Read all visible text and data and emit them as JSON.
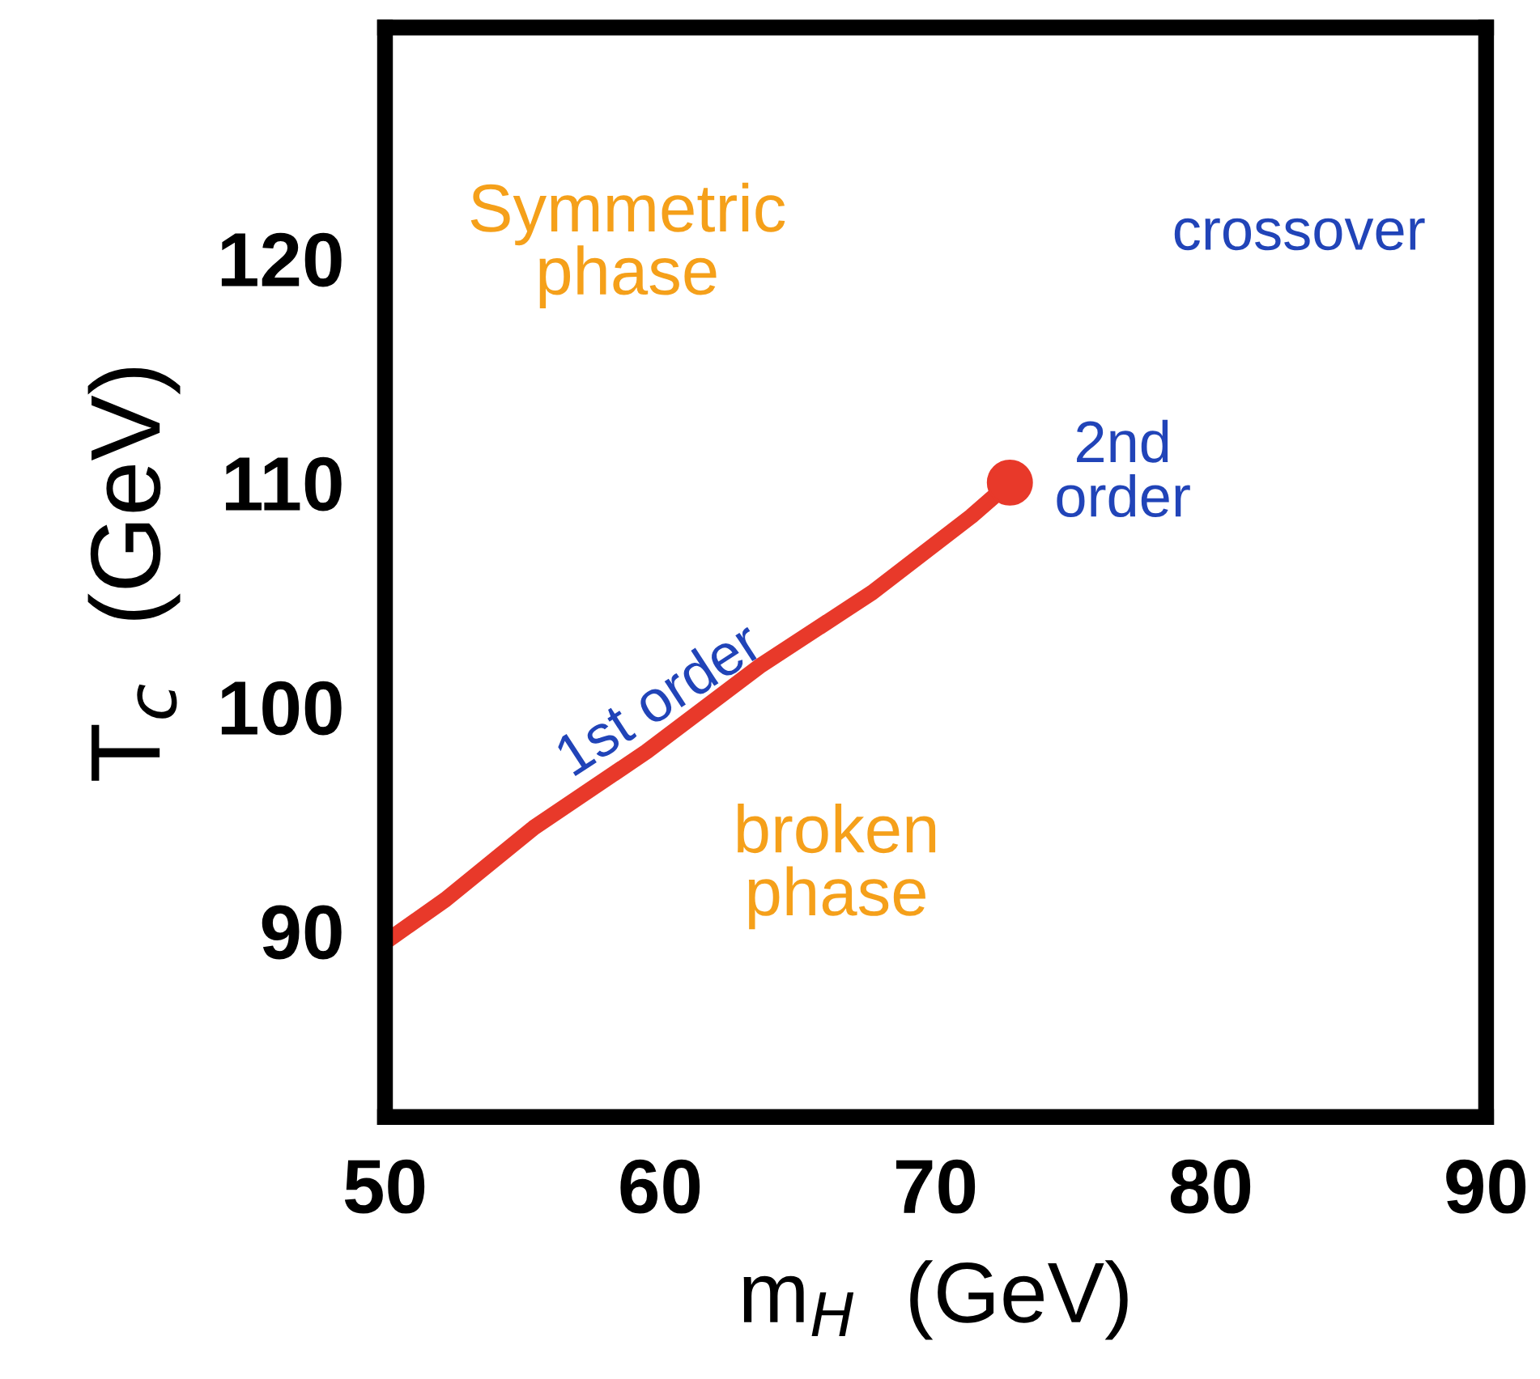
{
  "chart_data": {
    "type": "line",
    "xlabel": "m$_{H}$  (GeV)",
    "ylabel": "T$_{c}$  (GeV)",
    "xlim": [
      50,
      90
    ],
    "ylim": [
      81.7,
      130.3
    ],
    "xticks": [
      50,
      60,
      70,
      80,
      90
    ],
    "yticks": [
      90,
      100,
      110,
      120
    ],
    "grid": false,
    "legend": false,
    "series": [
      {
        "color": "#e8392a",
        "x": [
          50,
          52.2,
          55.4,
          59.5,
          63.6,
          67.7,
          71.3,
          72.7
        ],
        "values": [
          89.5,
          91.4,
          94.6,
          98.0,
          101.8,
          105.1,
          108.5,
          110
        ]
      },
      {
        "type": "scatter",
        "color": "#e8392a",
        "x": [
          72.7
        ],
        "values": [
          110
        ],
        "marker": "circle"
      }
    ],
    "annotations": [
      "Symmetric\nphase",
      "crossover",
      "2nd\norder",
      "1st order",
      "broken\nphase"
    ]
  }
}
